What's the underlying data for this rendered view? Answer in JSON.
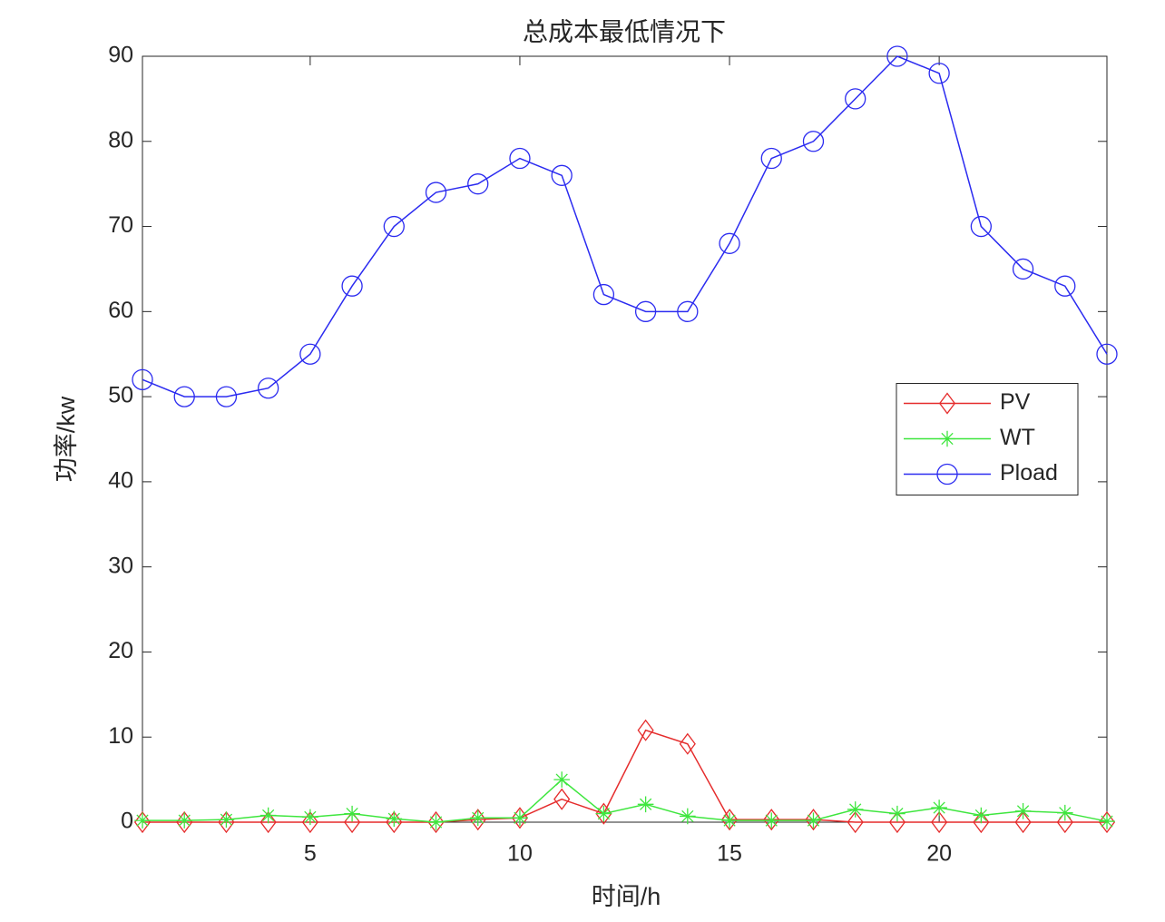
{
  "chart_data": {
    "type": "line",
    "title": "总成本最低情况下",
    "xlabel": "时间/h",
    "ylabel": "功率/kw",
    "x": [
      1,
      2,
      3,
      4,
      5,
      6,
      7,
      8,
      9,
      10,
      11,
      12,
      13,
      14,
      15,
      16,
      17,
      18,
      19,
      20,
      21,
      22,
      23,
      24
    ],
    "series": [
      {
        "name": "PV",
        "color": "#e52c2c",
        "marker": "diamond",
        "values": [
          0,
          0,
          0,
          0,
          0,
          0,
          0,
          0,
          0.3,
          0.5,
          2.7,
          1,
          10.8,
          9.2,
          0.3,
          0.3,
          0.3,
          0,
          0,
          0,
          0,
          0,
          0,
          0
        ]
      },
      {
        "name": "WT",
        "color": "#3ee63e",
        "marker": "asterisk",
        "values": [
          0.2,
          0.2,
          0.3,
          0.8,
          0.6,
          1,
          0.4,
          0,
          0.5,
          0.5,
          5,
          1,
          2.1,
          0.7,
          0.2,
          0.2,
          0.2,
          1.5,
          1,
          1.7,
          0.8,
          1.3,
          1.1,
          0.1
        ]
      },
      {
        "name": "Pload",
        "color": "#2b2bf0",
        "marker": "circle",
        "values": [
          52,
          50,
          50,
          51,
          55,
          63,
          70,
          74,
          75,
          78,
          76,
          62,
          60,
          60,
          68,
          78,
          80,
          85,
          90,
          88,
          70,
          65,
          63,
          55
        ]
      }
    ],
    "xlim": [
      1,
      24
    ],
    "xticks": [
      5,
      10,
      15,
      20
    ],
    "ylim": [
      0,
      90
    ],
    "yticks": [
      0,
      10,
      20,
      30,
      40,
      50,
      60,
      70,
      80,
      90
    ],
    "legend": "east",
    "grid": false
  }
}
